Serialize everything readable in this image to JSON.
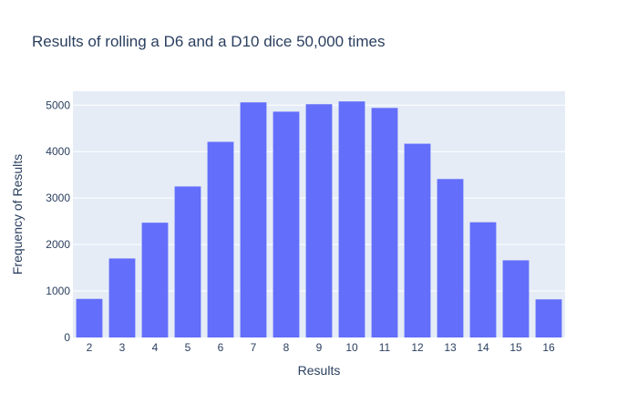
{
  "chart_data": {
    "type": "bar",
    "title": "Results of rolling a D6 and a D10 dice 50,000 times",
    "xlabel": "Results",
    "ylabel": "Frequency of Results",
    "categories": [
      "2",
      "3",
      "4",
      "5",
      "6",
      "7",
      "8",
      "9",
      "10",
      "11",
      "12",
      "13",
      "14",
      "15",
      "16"
    ],
    "values": [
      830,
      1700,
      2470,
      3250,
      4210,
      5060,
      4860,
      5020,
      5080,
      4940,
      4170,
      3410,
      2480,
      1660,
      820
    ],
    "ylim": [
      0,
      5300
    ],
    "yticks": [
      0,
      1000,
      2000,
      3000,
      4000,
      5000
    ],
    "grid": true,
    "legend": "none",
    "colors": {
      "bar": "#636efa",
      "plot_background": "#e5ecf6",
      "gridline": "#ffffff",
      "text": "#2a3f5f"
    }
  }
}
